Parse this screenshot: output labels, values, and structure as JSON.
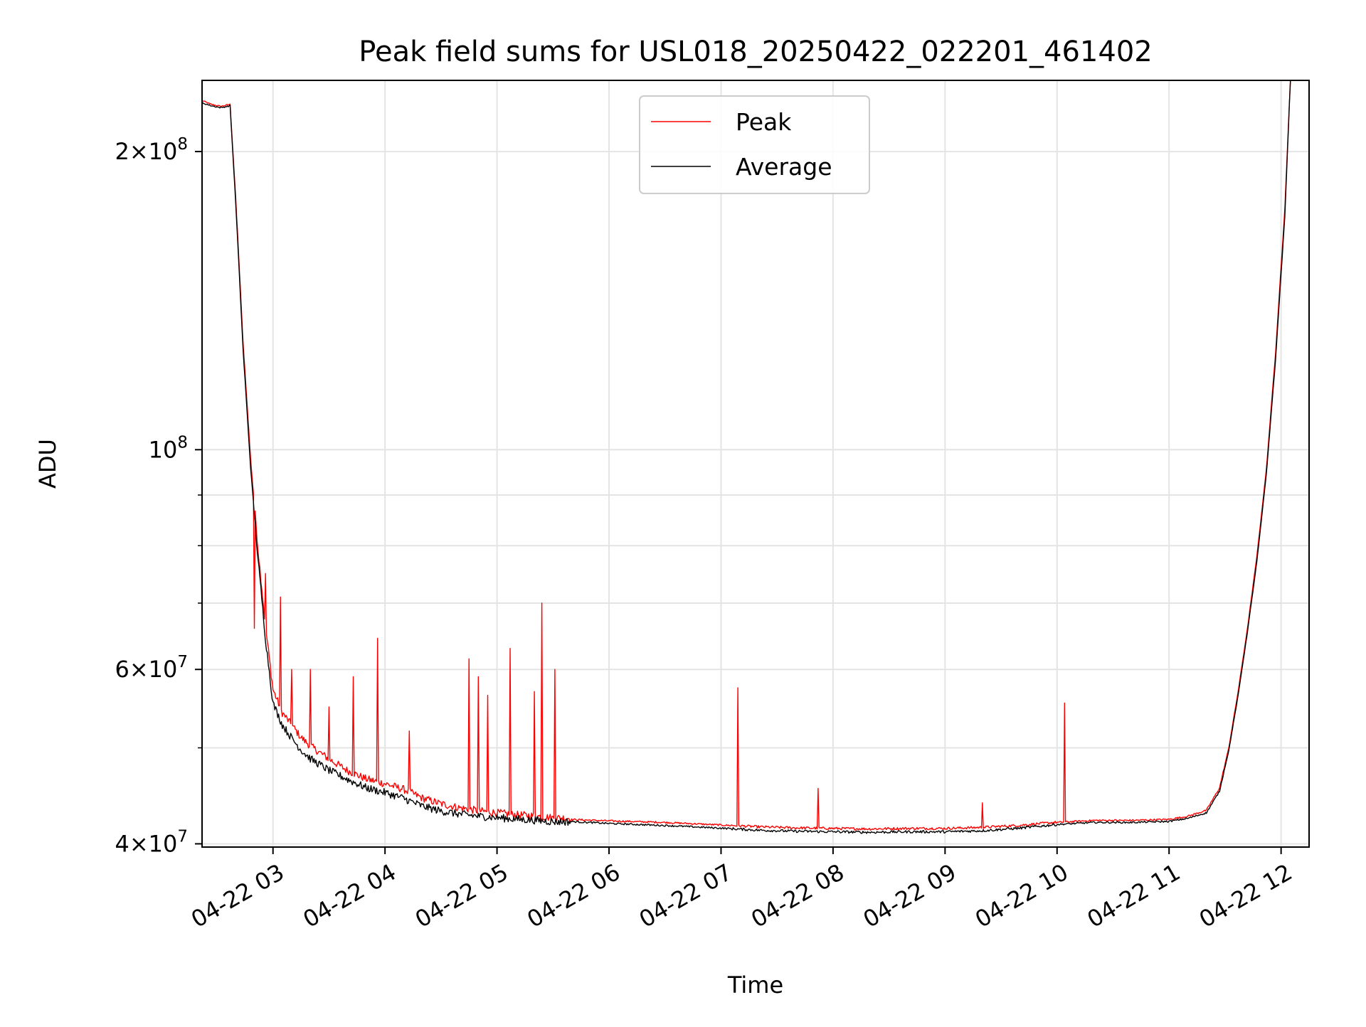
{
  "chart_data": {
    "type": "line",
    "title": "Peak field sums for USL018_20250422_022201_461402",
    "xlabel": "Time",
    "ylabel": "ADU",
    "yscale": "log",
    "xlim": [
      "2025-04-22 02:22",
      "2025-04-22 12:15"
    ],
    "ylim": [
      39700000,
      236000000
    ],
    "grid": true,
    "legend_position": "top-center",
    "x_ticks": [
      "04-22 03",
      "04-22 04",
      "04-22 05",
      "04-22 06",
      "04-22 07",
      "04-22 08",
      "04-22 09",
      "04-22 10",
      "04-22 11",
      "04-22 12"
    ],
    "y_ticks": [
      {
        "value": 40000000,
        "mantissa": "4",
        "exponent": "7"
      },
      {
        "value": 60000000,
        "mantissa": "6",
        "exponent": "7"
      },
      {
        "value": 100000000,
        "mantissa": "",
        "exponent": "8"
      },
      {
        "value": 200000000,
        "mantissa": "2",
        "exponent": "8"
      }
    ],
    "y_minor_ticks": [
      50000000,
      70000000,
      80000000,
      90000000
    ],
    "series": [
      {
        "name": "Peak",
        "color": "#ff0000",
        "x": [
          "02:22",
          "02:27",
          "02:32",
          "02:37",
          "02:40",
          "02:44",
          "02:48",
          "02:52",
          "02:56",
          "03:00",
          "03:05",
          "03:10",
          "03:15",
          "03:20",
          "03:30",
          "03:40",
          "03:50",
          "04:00",
          "04:10",
          "04:20",
          "04:30",
          "04:40",
          "04:50",
          "05:00",
          "05:10",
          "05:20",
          "05:30",
          "05:38",
          "06:00",
          "06:30",
          "07:05",
          "07:20",
          "07:40",
          "08:00",
          "08:20",
          "08:40",
          "09:00",
          "09:20",
          "09:40",
          "10:00",
          "10:20",
          "10:40",
          "11:00",
          "11:10",
          "11:20",
          "11:27",
          "11:32",
          "11:37",
          "11:42",
          "11:47",
          "11:52",
          "11:57",
          "12:02",
          "12:05"
        ],
        "y": [
          225000000,
          223000000,
          222000000,
          223000000,
          180000000,
          128000000,
          98000000,
          79000000,
          66000000,
          57000000,
          54000000,
          52500000,
          51000000,
          50000000,
          48500000,
          47200000,
          46300000,
          45800000,
          45200000,
          44300000,
          43700000,
          43300000,
          43000000,
          42800000,
          42600000,
          42500000,
          42300000,
          42300000,
          42150000,
          42000000,
          41700000,
          41550000,
          41450000,
          41400000,
          41350000,
          41400000,
          41400000,
          41500000,
          41700000,
          42000000,
          42200000,
          42200000,
          42300000,
          42600000,
          43200000,
          45500000,
          50000000,
          57000000,
          66000000,
          78000000,
          95000000,
          125000000,
          175000000,
          236000000
        ],
        "spikes": [
          [
            "02:50",
            66000000
          ],
          [
            "02:56",
            75000000
          ],
          [
            "03:04",
            71000000
          ],
          [
            "03:10",
            60000000
          ],
          [
            "03:20",
            60000000
          ],
          [
            "03:30",
            55000000
          ],
          [
            "03:43",
            59000000
          ],
          [
            "03:56",
            64500000
          ],
          [
            "04:13",
            52000000
          ],
          [
            "04:45",
            61500000
          ],
          [
            "04:50",
            59000000
          ],
          [
            "04:55",
            56500000
          ],
          [
            "05:07",
            63000000
          ],
          [
            "05:20",
            57000000
          ],
          [
            "05:24",
            70000000
          ],
          [
            "05:31",
            60000000
          ],
          [
            "07:09",
            57500000
          ],
          [
            "07:52",
            45500000
          ],
          [
            "09:20",
            44000000
          ],
          [
            "10:04",
            55500000
          ]
        ]
      },
      {
        "name": "Average",
        "color": "#000000",
        "x": [
          "02:22",
          "02:27",
          "02:32",
          "02:37",
          "02:40",
          "02:44",
          "02:48",
          "02:52",
          "02:56",
          "03:00",
          "03:05",
          "03:10",
          "03:15",
          "03:20",
          "03:30",
          "03:40",
          "03:50",
          "04:00",
          "04:10",
          "04:20",
          "04:30",
          "04:40",
          "04:50",
          "05:00",
          "05:10",
          "05:20",
          "05:30",
          "05:38",
          "06:00",
          "06:30",
          "07:05",
          "07:20",
          "07:40",
          "08:00",
          "08:20",
          "08:40",
          "09:00",
          "09:20",
          "09:40",
          "10:00",
          "10:20",
          "10:40",
          "11:00",
          "11:10",
          "11:20",
          "11:27",
          "11:32",
          "11:37",
          "11:42",
          "11:47",
          "11:52",
          "11:57",
          "12:02",
          "12:05"
        ],
        "y": [
          224000000,
          222500000,
          221500000,
          222500000,
          178000000,
          126000000,
          96000000,
          77500000,
          64500000,
          55500000,
          52800000,
          51200000,
          49800000,
          48800000,
          47500000,
          46500000,
          45600000,
          45100000,
          44500000,
          43700000,
          43200000,
          42900000,
          42700000,
          42550000,
          42400000,
          42300000,
          42150000,
          42150000,
          41950000,
          41750000,
          41450000,
          41300000,
          41200000,
          41150000,
          41100000,
          41150000,
          41150000,
          41250000,
          41500000,
          41850000,
          42050000,
          42050000,
          42150000,
          42450000,
          43000000,
          45200000,
          49700000,
          56500000,
          65500000,
          77000000,
          94000000,
          123000000,
          172000000,
          236000000
        ]
      }
    ]
  }
}
